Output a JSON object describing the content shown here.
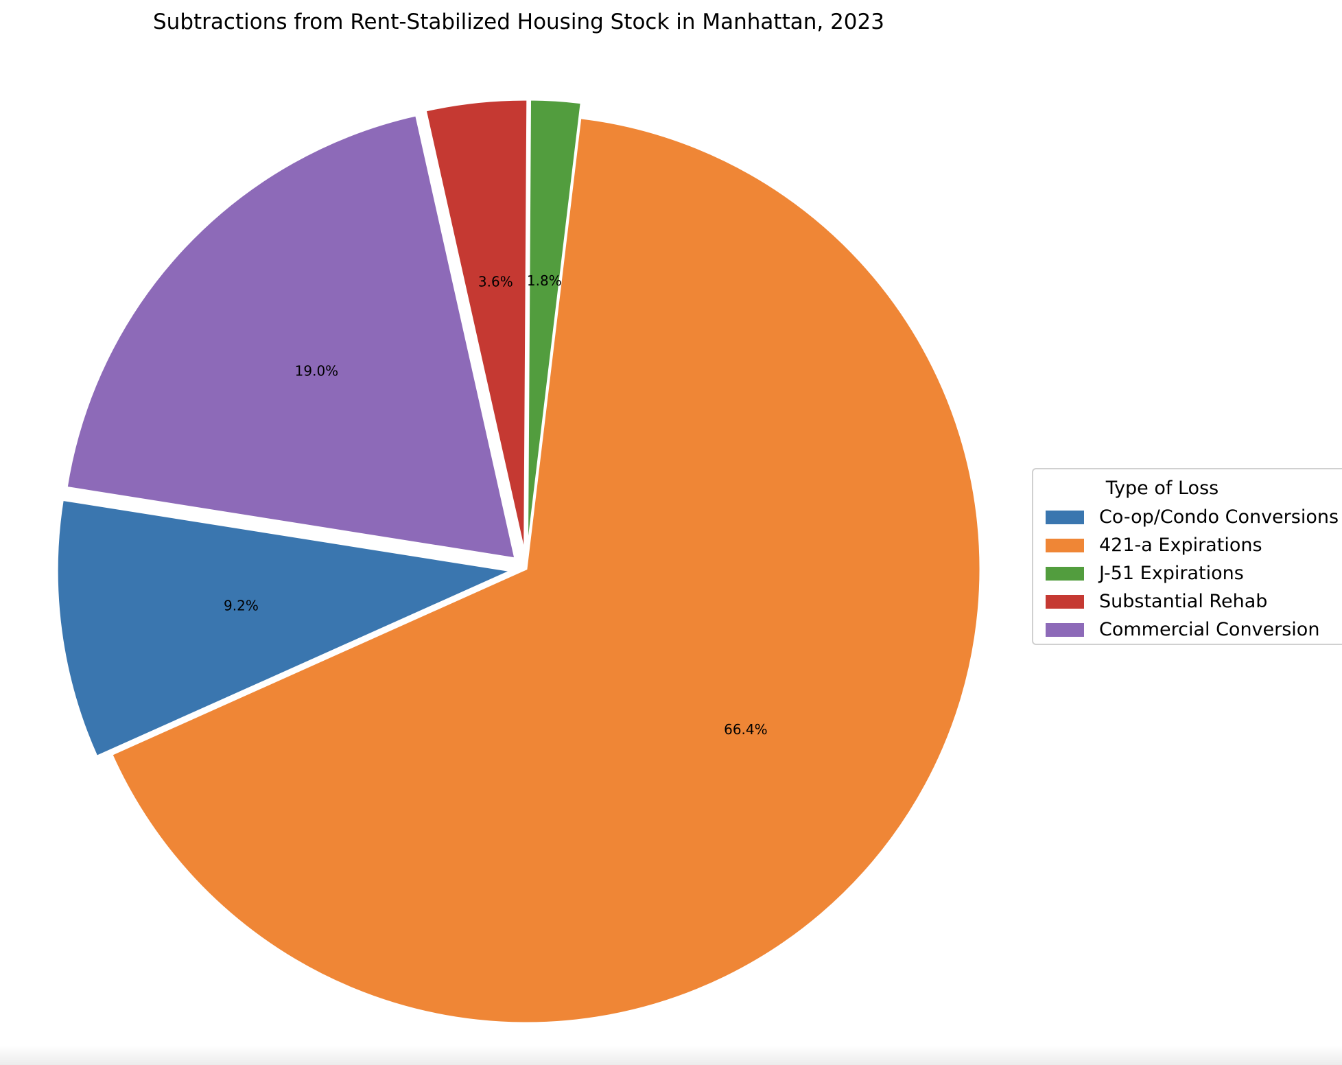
{
  "chart_data": {
    "type": "pie",
    "title": "Subtractions from Rent-Stabilized Housing Stock in Manhattan, 2023",
    "legend_title": "Type of Loss",
    "legend_placement": "right",
    "slices": [
      {
        "name": "Co-op/Condo Conversions",
        "value": 9.2,
        "label": "9.2%",
        "color": "#3a76af"
      },
      {
        "name": "421-a Expirations",
        "value": 66.4,
        "label": "66.4%",
        "color": "#ef8636"
      },
      {
        "name": "J-51 Expirations",
        "value": 1.8,
        "label": "1.8%",
        "color": "#529d3e"
      },
      {
        "name": "Substantial Rehab",
        "value": 3.6,
        "label": "3.6%",
        "color": "#c53932"
      },
      {
        "name": "Commercial Conversion",
        "value": 19.0,
        "label": "19.0%",
        "color": "#8d6ab8"
      }
    ]
  }
}
